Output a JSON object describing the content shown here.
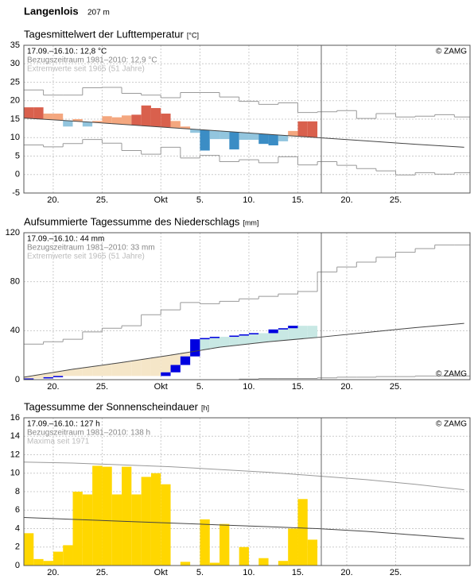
{
  "header": {
    "station": "Langenlois",
    "elevation": "207 m"
  },
  "chart_data": [
    {
      "type": "temperature",
      "title": "Tagesmittelwert der Lufttemperatur",
      "unit": "[°C]",
      "annotations": [
        "17.09.–16.10.: 12,8 °C",
        "Bezugszeitraum 1981–2010: 12,9 °C",
        "Extremwerte seit 1965 (51 Jahre)"
      ],
      "copyright": "© ZAMG",
      "copyright_corner": "top-right",
      "xlim": [
        0,
        45.6
      ],
      "xticks": [
        {
          "value": 3,
          "label": "20."
        },
        {
          "value": 8,
          "label": "25."
        },
        {
          "value": 14,
          "label": "Okt"
        },
        {
          "value": 18,
          "label": "5."
        },
        {
          "value": 23,
          "label": "10."
        },
        {
          "value": 28,
          "label": "15."
        },
        {
          "value": 33,
          "label": "20."
        },
        {
          "value": 38,
          "label": "25."
        }
      ],
      "ylim": [
        -5,
        35
      ],
      "yticks": [
        -5,
        0,
        5,
        10,
        15,
        20,
        25,
        30,
        35
      ],
      "grid": true,
      "divider_x": 30.4,
      "colors": {
        "warm": "#f4a77f",
        "hot": "#d9604d",
        "cool": "#92c5de",
        "cold": "#3b8dc5",
        "line": "#444444",
        "extreme": "#999999"
      },
      "observed": {
        "x": [
          0,
          1,
          2,
          3,
          4,
          5,
          6,
          7,
          8,
          9,
          10,
          11,
          12,
          13,
          14,
          15,
          16,
          17,
          18,
          19,
          20,
          21,
          22,
          23,
          24,
          25,
          26,
          27,
          28,
          29
        ],
        "values": [
          18.2,
          18.2,
          16.5,
          16.5,
          13,
          15,
          13,
          14.5,
          15.8,
          15.5,
          16,
          16.2,
          18.7,
          18,
          16.5,
          14.5,
          13,
          11.3,
          6.5,
          9.6,
          9.6,
          6.8,
          9.4,
          9.4,
          8.3,
          7.9,
          9,
          11.8,
          14.4,
          14.4
        ]
      },
      "mean": {
        "x": [
          0,
          5,
          10,
          15,
          20,
          25,
          30,
          35,
          40,
          45
        ],
        "values": [
          15.3,
          14.5,
          13.6,
          12.7,
          11.8,
          10.9,
          10,
          9.1,
          8.2,
          7.4
        ]
      },
      "max": {
        "x": [
          0,
          2,
          4,
          6,
          8,
          10,
          12,
          14,
          16,
          18,
          20,
          22,
          24,
          26,
          28,
          30,
          32,
          34,
          36,
          38,
          40,
          42,
          44
        ],
        "values": [
          22.9,
          21.5,
          21.5,
          23.5,
          23.6,
          22,
          21.5,
          20.8,
          22.2,
          22.2,
          21,
          19.8,
          19,
          19.4,
          16.8,
          17,
          17.3,
          15.2,
          16.5,
          15.6,
          15.8,
          16.2,
          15.6
        ]
      },
      "min": {
        "x": [
          0,
          2,
          4,
          6,
          8,
          10,
          12,
          14,
          16,
          18,
          20,
          22,
          24,
          26,
          28,
          30,
          32,
          34,
          36,
          38,
          40,
          42,
          44
        ],
        "values": [
          8,
          7.5,
          8.4,
          9.5,
          8.5,
          6.5,
          5.5,
          7.4,
          4.5,
          5.2,
          3.5,
          4,
          3.2,
          4.8,
          2.6,
          3.5,
          2.5,
          1.6,
          1,
          -0.1,
          0.5,
          0.1,
          0.5
        ]
      }
    },
    {
      "type": "cumulative",
      "title": "Aufsummierte Tagessumme des Niederschlags",
      "unit": "[mm]",
      "annotations": [
        "17.09.–16.10.: 44 mm",
        "Bezugszeitraum 1981–2010: 33 mm",
        "Extremwerte seit 1965 (51 Jahre)"
      ],
      "copyright": "© ZAMG",
      "copyright_corner": "bottom-right",
      "xlim": [
        0,
        45.6
      ],
      "xticks": [
        {
          "value": 3,
          "label": "20."
        },
        {
          "value": 8,
          "label": "25."
        },
        {
          "value": 14,
          "label": "Okt"
        },
        {
          "value": 18,
          "label": "5."
        },
        {
          "value": 23,
          "label": "10."
        },
        {
          "value": 28,
          "label": "15."
        },
        {
          "value": 33,
          "label": "20."
        },
        {
          "value": 38,
          "label": "25."
        }
      ],
      "ylim": [
        0,
        120
      ],
      "yticks": [
        0,
        40,
        80,
        120
      ],
      "grid": true,
      "divider_x": 30.4,
      "colors": {
        "below": "#f5e6c8",
        "above": "#c8e8e4",
        "increment": "#0000e0",
        "line": "#444444",
        "extreme": "#999999"
      },
      "observed": {
        "x": [
          0,
          1,
          2,
          3,
          4,
          5,
          6,
          7,
          8,
          9,
          10,
          11,
          12,
          13,
          14,
          15,
          16,
          17,
          18,
          19,
          20,
          21,
          22,
          23,
          24,
          25,
          26,
          27,
          28,
          29
        ],
        "values": [
          1,
          1,
          2,
          3,
          3,
          3,
          3,
          3,
          3,
          3,
          3,
          3,
          3,
          3,
          6,
          12,
          19,
          33,
          34,
          35,
          35,
          36,
          37,
          38,
          38,
          41,
          42,
          44,
          44,
          44
        ]
      },
      "mean": {
        "x": [
          0,
          5,
          10,
          15,
          20,
          25,
          30,
          35,
          40,
          45
        ],
        "values": [
          2,
          8.5,
          14,
          20,
          26.5,
          31,
          34.5,
          38.5,
          42.5,
          46
        ]
      },
      "max": {
        "x": [
          0,
          2,
          4,
          6,
          8,
          10,
          12,
          14,
          16,
          18,
          20,
          22,
          24,
          26,
          28,
          30,
          32,
          34,
          36,
          38,
          40,
          42,
          44
        ],
        "values": [
          29,
          31,
          33,
          39,
          42,
          44,
          53,
          57,
          63,
          62,
          64,
          66,
          68,
          70,
          72,
          88,
          92,
          96,
          100,
          104,
          107,
          110,
          110
        ]
      },
      "min": {
        "x": [
          0,
          2,
          4,
          6,
          8,
          10,
          12,
          14,
          16,
          18,
          20,
          22,
          24,
          26,
          28,
          30,
          32,
          34,
          36,
          38,
          40,
          42,
          44
        ],
        "values": [
          0,
          0,
          0,
          0,
          0,
          0,
          0,
          0,
          0,
          0,
          0,
          0.5,
          1,
          1,
          1,
          1.5,
          2,
          2,
          2.5,
          2.5,
          3,
          3,
          3
        ]
      }
    },
    {
      "type": "bar",
      "title": "Tagessumme der Sonnenscheindauer",
      "unit": "[h]",
      "annotations": [
        "17.09.–16.10.: 127 h",
        "Bezugszeitraum 1981–2010: 138 h",
        "Maxima seit 1971"
      ],
      "copyright": "© ZAMG",
      "copyright_corner": "top-right",
      "xlim": [
        0,
        45.6
      ],
      "xticks": [
        {
          "value": 3,
          "label": "20."
        },
        {
          "value": 8,
          "label": "25."
        },
        {
          "value": 14,
          "label": "Okt"
        },
        {
          "value": 18,
          "label": "5."
        },
        {
          "value": 23,
          "label": "10."
        },
        {
          "value": 28,
          "label": "15."
        },
        {
          "value": 33,
          "label": "20."
        },
        {
          "value": 38,
          "label": "25."
        }
      ],
      "ylim": [
        0,
        16
      ],
      "yticks": [
        0,
        2,
        4,
        6,
        8,
        10,
        12,
        14,
        16
      ],
      "grid": true,
      "divider_x": 30.4,
      "colors": {
        "bar": "#ffd700",
        "line": "#444444",
        "extreme": "#999999"
      },
      "observed": {
        "x": [
          0,
          1,
          2,
          3,
          4,
          5,
          6,
          7,
          8,
          9,
          10,
          11,
          12,
          13,
          14,
          15,
          16,
          17,
          18,
          19,
          20,
          21,
          22,
          23,
          24,
          25,
          26,
          27,
          28,
          29
        ],
        "values": [
          3.5,
          0.7,
          0.5,
          1.5,
          2.2,
          8,
          7.7,
          10.8,
          10.7,
          7.7,
          10.7,
          7.7,
          9.6,
          10,
          8.8,
          0,
          0.4,
          0,
          5,
          0.3,
          4.5,
          0,
          2,
          0,
          0.8,
          0,
          0.5,
          4,
          7.2,
          2.8
        ]
      },
      "mean": {
        "x": [
          0,
          5,
          10,
          15,
          20,
          25,
          30,
          35,
          40,
          45
        ],
        "values": [
          5.2,
          5,
          4.8,
          4.6,
          4.4,
          4.2,
          4,
          3.7,
          3.3,
          2.9
        ]
      },
      "max": {
        "x": [
          0,
          5,
          10,
          15,
          20,
          25,
          30,
          35,
          40,
          45
        ],
        "values": [
          11.2,
          11.1,
          10.9,
          10.7,
          10.4,
          10.1,
          9.7,
          9.3,
          8.8,
          8.2
        ]
      }
    }
  ]
}
